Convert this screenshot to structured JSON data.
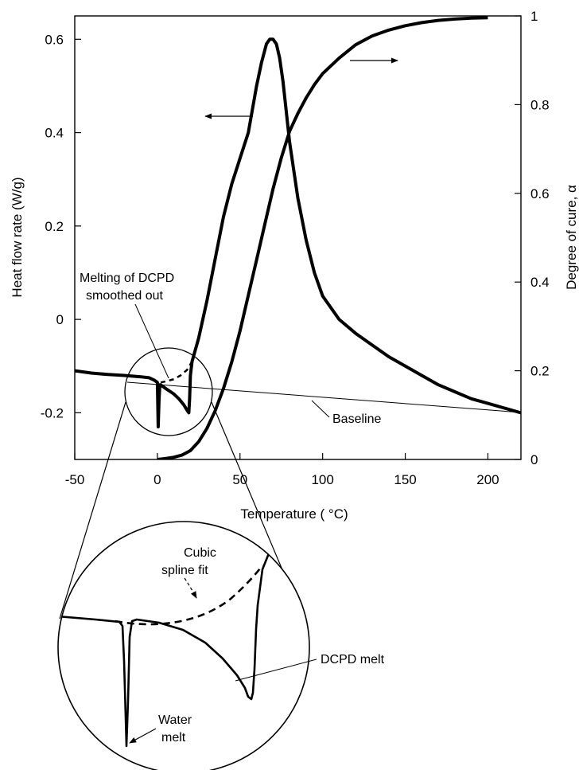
{
  "chart_data": {
    "type": "line",
    "title": "",
    "xlabel": "Temperature ( °C)",
    "ylabel_left": "Heat flow rate (W/g)",
    "ylabel_right": "Degree of cure, α",
    "xlim": [
      -50,
      220
    ],
    "ylim_left": [
      -0.3,
      0.65
    ],
    "ylim_right": [
      0,
      1
    ],
    "x_ticks": [
      "-50",
      "0",
      "50",
      "100",
      "150",
      "200"
    ],
    "y_left_ticks": [
      "-0.2",
      "0",
      "0.2",
      "0.4",
      "0.6"
    ],
    "y_right_ticks": [
      "0",
      "0.2",
      "0.4",
      "0.6",
      "0.8",
      "1"
    ],
    "grid": false,
    "series": [
      {
        "axis": "left",
        "x": [
          -50,
          -40,
          -30,
          -20,
          -10,
          -5,
          -2,
          0,
          0.5,
          1,
          1.5,
          2,
          3,
          5,
          8,
          10,
          13,
          16,
          18,
          19,
          19.5,
          20,
          21,
          25,
          30,
          35,
          40,
          45,
          50,
          55,
          60,
          63,
          66,
          68,
          70,
          72,
          74,
          76,
          80,
          85,
          90,
          95,
          100,
          110,
          120,
          130,
          140,
          150,
          160,
          170,
          180,
          190,
          200,
          210,
          220
        ],
        "values": [
          -0.11,
          -0.115,
          -0.118,
          -0.12,
          -0.123,
          -0.125,
          -0.13,
          -0.135,
          -0.23,
          -0.17,
          -0.14,
          -0.14,
          -0.143,
          -0.148,
          -0.155,
          -0.16,
          -0.17,
          -0.183,
          -0.195,
          -0.2,
          -0.17,
          -0.12,
          -0.09,
          -0.04,
          0.04,
          0.13,
          0.22,
          0.29,
          0.345,
          0.4,
          0.5,
          0.55,
          0.59,
          0.6,
          0.6,
          0.59,
          0.56,
          0.51,
          0.38,
          0.26,
          0.17,
          0.1,
          0.05,
          0.0,
          -0.03,
          -0.055,
          -0.08,
          -0.1,
          -0.12,
          -0.14,
          -0.155,
          -0.17,
          -0.18,
          -0.19,
          -0.2
        ]
      },
      {
        "axis": "right",
        "x": [
          0,
          5,
          10,
          15,
          20,
          25,
          30,
          35,
          40,
          45,
          50,
          55,
          60,
          65,
          70,
          75,
          80,
          85,
          90,
          95,
          100,
          110,
          120,
          130,
          140,
          150,
          160,
          170,
          180,
          190,
          200
        ],
        "values": [
          0.0,
          0.002,
          0.005,
          0.01,
          0.02,
          0.04,
          0.07,
          0.11,
          0.16,
          0.22,
          0.29,
          0.37,
          0.45,
          0.53,
          0.61,
          0.68,
          0.74,
          0.78,
          0.815,
          0.845,
          0.87,
          0.905,
          0.935,
          0.955,
          0.968,
          0.978,
          0.985,
          0.99,
          0.993,
          0.995,
          0.996
        ]
      },
      {
        "axis": "left",
        "style": "dashed",
        "x": [
          2,
          6,
          10,
          14,
          18,
          21
        ],
        "values": [
          -0.135,
          -0.132,
          -0.128,
          -0.12,
          -0.108,
          -0.09
        ]
      }
    ],
    "annotations": {
      "smoothed": [
        "Melting of DCPD",
        "smoothed out"
      ],
      "baseline": "Baseline",
      "spline": [
        "Cubic",
        "spline fit"
      ],
      "dcpd": "DCPD melt",
      "water": [
        "Water",
        "melt"
      ]
    }
  }
}
